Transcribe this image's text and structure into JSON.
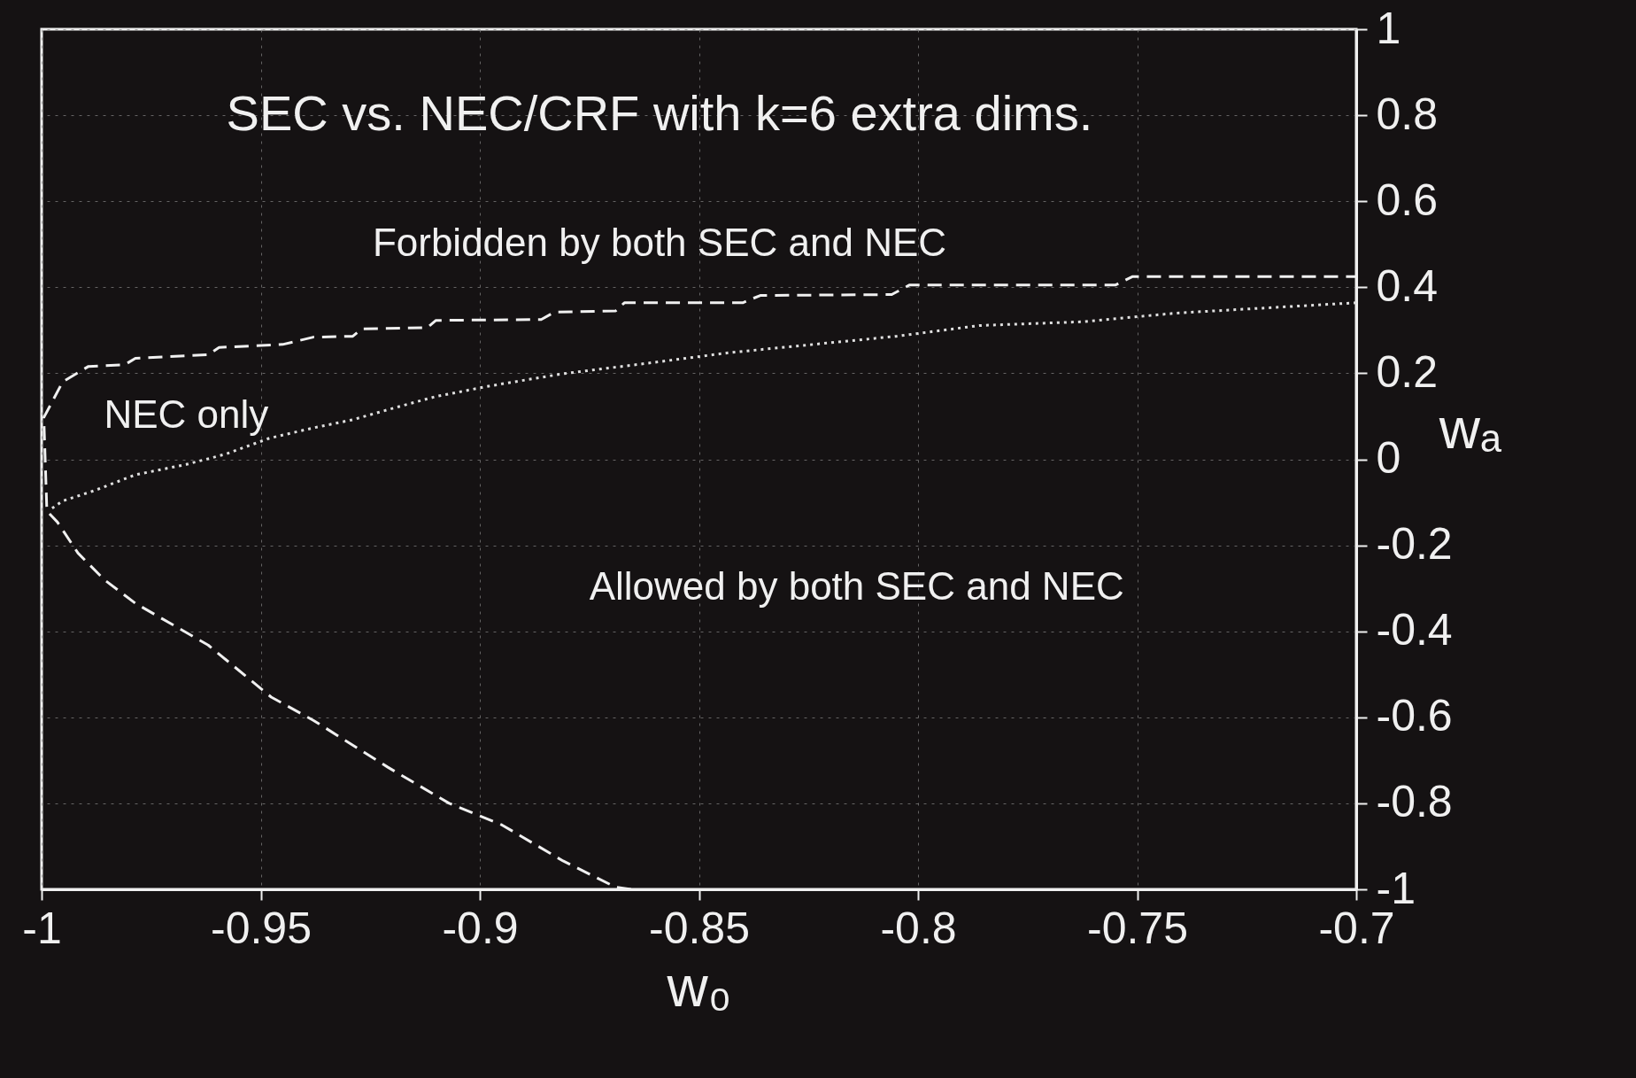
{
  "chart_data": {
    "type": "line",
    "xlabel": "w₀",
    "ylabel": "wₐ",
    "xlim": [
      -1,
      -0.7
    ],
    "xticks": [
      -1,
      -0.95,
      -0.9,
      -0.85,
      -0.8,
      -0.75,
      -0.7
    ],
    "ylim": [
      -1,
      1
    ],
    "yticks": [
      -1,
      -0.8,
      -0.6,
      -0.4,
      -0.2,
      0,
      0.2,
      0.4,
      0.6,
      0.8,
      1
    ],
    "grid": true,
    "marker": "none",
    "annotations": [
      "SEC vs. NEC/CRF with k=6 extra dims.",
      "Forbidden by both SEC and NEC",
      "NEC only",
      "Allowed by both SEC and NEC"
    ],
    "series": [
      {
        "color": "#f0f0f0",
        "line_style": "dashed",
        "x": [
          -0.8655,
          -0.869,
          -0.881,
          -0.895,
          -0.907,
          -0.921,
          -0.938,
          -0.9476,
          -0.962,
          -0.9786,
          -0.9857,
          -0.9917,
          -0.9964,
          -0.9988,
          -0.9995,
          -0.9952,
          -0.9893,
          -0.981,
          -0.9786,
          -0.962,
          -0.9595,
          -0.945,
          -0.938,
          -0.929,
          -0.927,
          -0.912,
          -0.91,
          -0.886,
          -0.883,
          -0.869,
          -0.867,
          -0.84,
          -0.836,
          -0.806,
          -0.802,
          -0.755,
          -0.751,
          -0.7
        ],
        "values": [
          -1.0,
          -0.995,
          -0.934,
          -0.85,
          -0.8,
          -0.716,
          -0.607,
          -0.553,
          -0.432,
          -0.335,
          -0.28,
          -0.218,
          -0.146,
          -0.12,
          0.097,
          0.18,
          0.216,
          0.22,
          0.235,
          0.243,
          0.26,
          0.267,
          0.284,
          0.286,
          0.303,
          0.306,
          0.323,
          0.325,
          0.342,
          0.345,
          0.364,
          0.364,
          0.381,
          0.383,
          0.405,
          0.405,
          0.425,
          0.425
        ]
      },
      {
        "color": "#e0e0e0",
        "line_style": "dotted",
        "x": [
          -0.9976,
          -0.9952,
          -0.988,
          -0.9786,
          -0.967,
          -0.958,
          -0.948,
          -0.938,
          -0.929,
          -0.919,
          -0.91,
          -0.898,
          -0.881,
          -0.862,
          -0.843,
          -0.824,
          -0.805,
          -0.786,
          -0.762,
          -0.741,
          -0.7
        ],
        "values": [
          -0.114,
          -0.097,
          -0.073,
          -0.036,
          -0.012,
          0.012,
          0.049,
          0.073,
          0.092,
          0.121,
          0.146,
          0.17,
          0.199,
          0.223,
          0.248,
          0.267,
          0.286,
          0.311,
          0.32,
          0.34,
          0.364
        ]
      }
    ]
  }
}
